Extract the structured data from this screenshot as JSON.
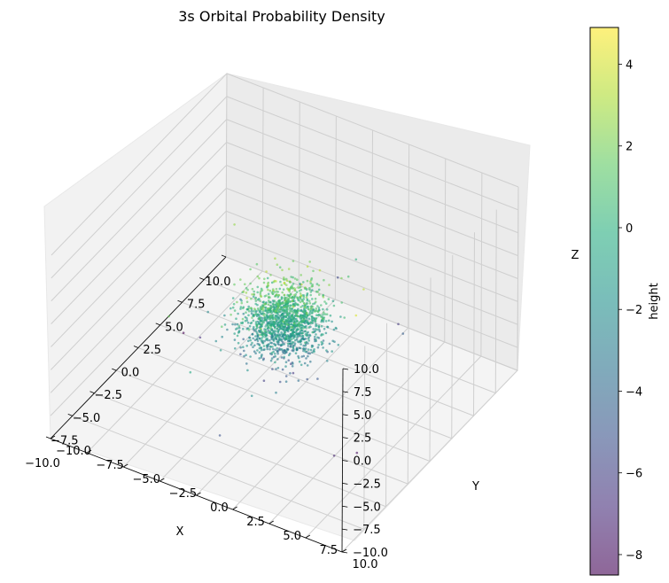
{
  "chart_data": {
    "type": "scatter",
    "title": "3s Orbital Probability Density",
    "xlabel": "X",
    "ylabel": "Y",
    "zlabel": "Z",
    "xlim": [
      -10,
      10
    ],
    "ylim": [
      -10,
      10
    ],
    "zlim": [
      -10,
      10
    ],
    "x_ticks": [
      "−10.0",
      "−7.5",
      "−5.0",
      "−2.5",
      "0.0",
      "2.5",
      "5.0",
      "7.5",
      "10.0"
    ],
    "y_ticks": [
      "−10.0",
      "−7.5",
      "−5.0",
      "−2.5",
      "0.0",
      "2.5",
      "5.0",
      "7.5",
      "10.0"
    ],
    "z_ticks": [
      "−10.0",
      "−7.5",
      "−5.0",
      "−2.5",
      "0.0",
      "2.5",
      "5.0",
      "7.5",
      "10.0"
    ],
    "grid": true,
    "colormap": "viridis",
    "point_alpha": 0.6,
    "colorbar": {
      "label": "height",
      "range": [
        -8.5,
        4.9
      ],
      "ticks": [
        "−8",
        "−6",
        "−4",
        "−2",
        "0",
        "2",
        "4"
      ],
      "tick_values": [
        -8,
        -6,
        -4,
        -2,
        0,
        2,
        4
      ]
    },
    "points": [
      [
        0.3,
        0.0,
        3.2
      ],
      [
        -0.2,
        0.4,
        2.9
      ],
      [
        0.5,
        -0.3,
        2.6
      ],
      [
        -0.6,
        -0.2,
        2.4
      ],
      [
        0.1,
        0.6,
        2.2
      ],
      [
        0.8,
        0.2,
        2.0
      ],
      [
        -0.9,
        0.5,
        1.8
      ],
      [
        0.4,
        -0.8,
        1.7
      ],
      [
        -0.3,
        -0.9,
        1.5
      ],
      [
        1.0,
        -0.4,
        1.4
      ],
      [
        -1.1,
        0.1,
        1.3
      ],
      [
        0.6,
        0.9,
        1.2
      ],
      [
        -0.5,
        1.1,
        1.0
      ],
      [
        1.2,
        0.6,
        0.9
      ],
      [
        -1.3,
        -0.6,
        0.8
      ],
      [
        0.2,
        -1.2,
        0.7
      ],
      [
        1.4,
        -0.9,
        0.6
      ],
      [
        -1.2,
        1.0,
        0.5
      ],
      [
        0.9,
        1.3,
        0.4
      ],
      [
        -0.8,
        -1.3,
        0.3
      ],
      [
        1.6,
        0.1,
        0.2
      ],
      [
        -1.6,
        0.3,
        0.1
      ],
      [
        0.0,
        1.6,
        0.0
      ],
      [
        0.3,
        -1.6,
        -0.1
      ],
      [
        1.3,
        1.2,
        -0.2
      ],
      [
        -1.4,
        -1.1,
        -0.3
      ],
      [
        1.5,
        -1.3,
        -0.4
      ],
      [
        -1.5,
        1.3,
        -0.5
      ],
      [
        0.7,
        1.7,
        -0.6
      ],
      [
        -0.7,
        -1.7,
        -0.7
      ],
      [
        1.8,
        0.5,
        -0.8
      ],
      [
        -1.8,
        -0.4,
        -0.9
      ],
      [
        0.4,
        1.9,
        -1.0
      ],
      [
        -0.4,
        -1.9,
        -1.1
      ],
      [
        1.7,
        -0.8,
        -1.2
      ],
      [
        -1.7,
        0.8,
        -1.3
      ],
      [
        1.1,
        1.5,
        -1.4
      ],
      [
        -1.0,
        -1.5,
        -1.5
      ],
      [
        1.9,
        -0.2,
        -1.6
      ],
      [
        -1.9,
        0.2,
        -1.7
      ],
      [
        0.6,
        -1.8,
        -1.8
      ],
      [
        -0.6,
        1.8,
        -1.9
      ],
      [
        1.4,
        0.9,
        -2.0
      ],
      [
        -1.3,
        -0.9,
        -2.1
      ],
      [
        0.9,
        -1.4,
        -2.2
      ],
      [
        -0.9,
        1.4,
        -2.3
      ],
      [
        1.6,
        0.3,
        -2.4
      ],
      [
        -1.6,
        -0.2,
        -2.5
      ],
      [
        0.2,
        1.5,
        -2.6
      ],
      [
        -0.2,
        -1.5,
        -2.7
      ],
      [
        1.2,
        -0.7,
        -2.8
      ],
      [
        -1.1,
        0.7,
        -2.9
      ],
      [
        0.8,
        1.0,
        -3.0
      ],
      [
        -0.8,
        -1.0,
        -3.1
      ],
      [
        0.5,
        -0.4,
        -3.2
      ],
      [
        -0.4,
        0.5,
        -3.3
      ],
      [
        0.9,
        0.0,
        -3.4
      ],
      [
        -0.9,
        0.1,
        -3.5
      ],
      [
        0.1,
        0.8,
        -3.6
      ],
      [
        -0.1,
        -0.8,
        -3.7
      ],
      [
        0.4,
        0.2,
        -3.9
      ],
      [
        -0.3,
        -0.3,
        -4.1
      ],
      [
        0.2,
        -0.1,
        -4.4
      ],
      [
        -0.2,
        0.1,
        -4.7
      ],
      [
        0.0,
        0.3,
        -5.0
      ],
      [
        2.2,
        0.6,
        1.1
      ],
      [
        -2.3,
        -0.5,
        0.6
      ],
      [
        0.7,
        2.3,
        0.2
      ],
      [
        -0.6,
        -2.2,
        -0.4
      ],
      [
        2.4,
        -0.7,
        -1.0
      ],
      [
        -2.4,
        0.8,
        -1.6
      ],
      [
        1.9,
        1.5,
        0.9
      ],
      [
        -1.8,
        -1.6,
        -0.1
      ],
      [
        1.6,
        -1.9,
        -2.0
      ],
      [
        -1.5,
        1.9,
        1.5
      ],
      [
        2.6,
        0.0,
        -0.6
      ],
      [
        -2.6,
        0.2,
        -1.3
      ],
      [
        0.1,
        2.6,
        -2.3
      ],
      [
        -0.2,
        -2.6,
        1.7
      ],
      [
        2.1,
        2.0,
        -1.8
      ],
      [
        -2.1,
        -2.0,
        2.0
      ],
      [
        2.8,
        -1.1,
        0.4
      ],
      [
        -2.7,
        1.2,
        -2.6
      ],
      [
        1.2,
        2.8,
        -1.1
      ],
      [
        -1.1,
        -2.8,
        0.3
      ],
      [
        3.3,
        0.4,
        -0.5
      ],
      [
        -3.2,
        -0.5,
        1.0
      ],
      [
        0.5,
        3.4,
        -1.9
      ],
      [
        -0.4,
        -3.3,
        -2.9
      ],
      [
        3.0,
        2.1,
        2.1
      ],
      [
        -3.1,
        2.0,
        -3.2
      ],
      [
        2.0,
        -3.1,
        1.4
      ],
      [
        -2.1,
        -3.0,
        -2.4
      ],
      [
        3.8,
        -0.3,
        -3.6
      ],
      [
        -3.7,
        0.6,
        2.3
      ],
      [
        4.3,
        1.8,
        0.8
      ],
      [
        -4.1,
        -1.9,
        -1.2
      ],
      [
        1.7,
        4.4,
        3.6
      ],
      [
        -4.6,
        2.2,
        -2.8
      ],
      [
        2.5,
        -4.5,
        -3.8
      ],
      [
        6.5,
        1.0,
        0.0
      ],
      [
        6.0,
        -2.5,
        -4.4
      ],
      [
        7.2,
        3.5,
        -6.2
      ],
      [
        8.6,
        -1.5,
        -5.6
      ],
      [
        -6.2,
        1.5,
        -2.0
      ],
      [
        -7.4,
        -2.0,
        -0.4
      ],
      [
        0.4,
        -6.0,
        -6.8
      ],
      [
        -3.0,
        6.8,
        -8.1
      ],
      [
        1.5,
        -7.8,
        -8.5
      ],
      [
        -5.2,
        -4.8,
        1.8
      ],
      [
        5.4,
        4.9,
        -4.6
      ],
      [
        -1.0,
        5.5,
        4.1
      ],
      [
        3.6,
        -5.6,
        2.6
      ],
      [
        -4.6,
        6.2,
        -7.2
      ],
      [
        -8.0,
        0.4,
        -5.2
      ]
    ]
  }
}
